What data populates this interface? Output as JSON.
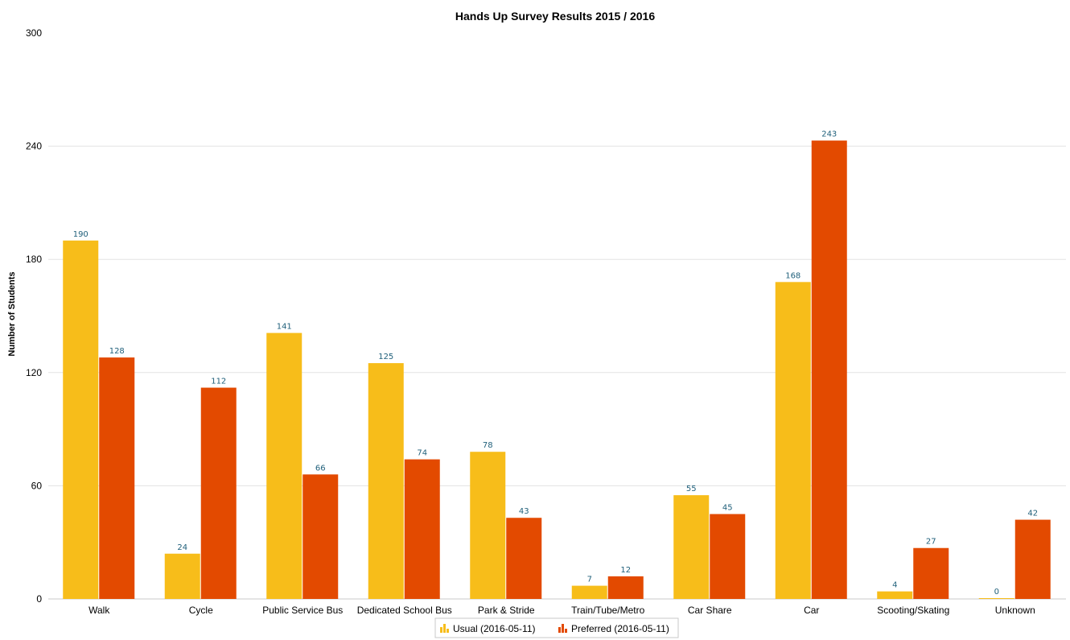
{
  "chart_data": {
    "type": "bar",
    "title": "Hands Up Survey Results 2015 / 2016",
    "xlabel": "",
    "ylabel": "Number of Students",
    "ylim": [
      0,
      300
    ],
    "yticks": [
      0,
      60,
      120,
      180,
      240,
      300
    ],
    "grid": true,
    "legend_position": "bottom-center",
    "categories": [
      "Walk",
      "Cycle",
      "Public Service Bus",
      "Dedicated School Bus",
      "Park & Stride",
      "Train/Tube/Metro",
      "Car Share",
      "Car",
      "Scooting/Skating",
      "Unknown"
    ],
    "series": [
      {
        "name": "Usual (2016-05-11)",
        "color": "#f7bd1a",
        "values": [
          190,
          24,
          141,
          125,
          78,
          7,
          55,
          168,
          4,
          0
        ]
      },
      {
        "name": "Preferred (2016-05-11)",
        "color": "#e34a00",
        "values": [
          128,
          112,
          66,
          74,
          43,
          12,
          45,
          243,
          27,
          42
        ]
      }
    ]
  }
}
